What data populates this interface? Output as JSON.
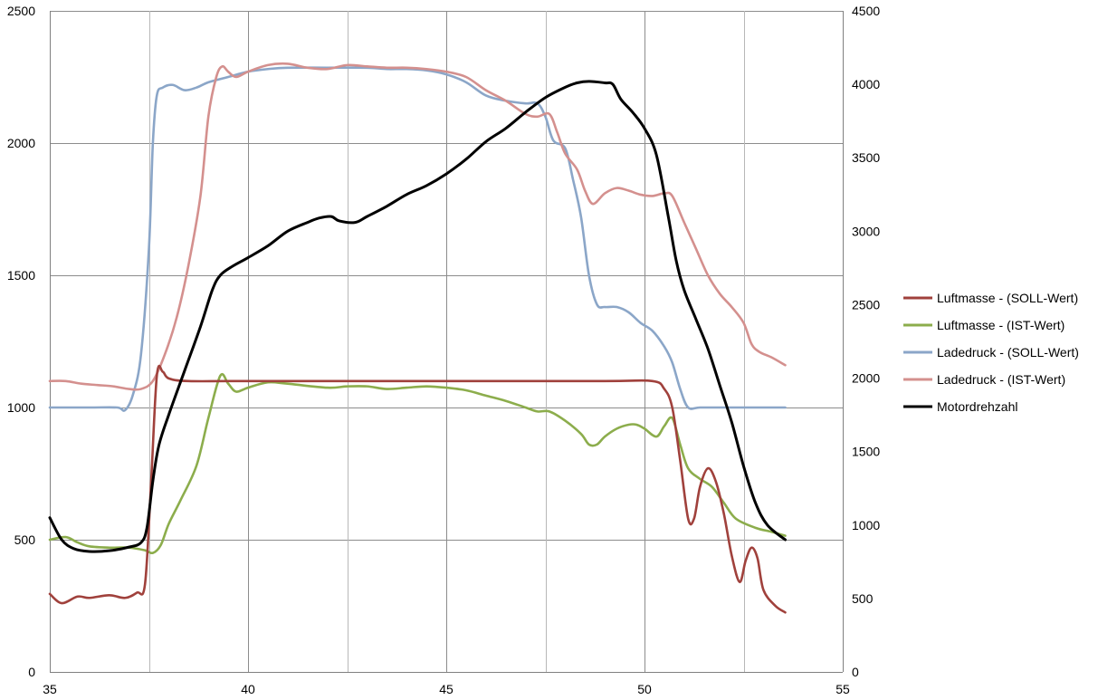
{
  "chart_data": {
    "type": "line",
    "title": "",
    "xlabel": "",
    "ylabel": "",
    "y2label": "",
    "xlim": [
      35,
      55
    ],
    "ylim": [
      0,
      2500
    ],
    "y2lim": [
      0,
      4500
    ],
    "x_ticks": [
      35,
      40,
      45,
      50,
      55
    ],
    "y_ticks": [
      0,
      500,
      1000,
      1500,
      2000,
      2500
    ],
    "y2_ticks": [
      0,
      500,
      1000,
      1500,
      2000,
      2500,
      3000,
      3500,
      4000,
      4500
    ],
    "grid": true,
    "legend_position": "right",
    "series": [
      {
        "name": "Luftmasse - (SOLL-Wert)",
        "color": "#a0413c",
        "axis": "left",
        "points": [
          [
            35.0,
            295
          ],
          [
            35.3,
            260
          ],
          [
            35.7,
            285
          ],
          [
            36.0,
            280
          ],
          [
            36.5,
            290
          ],
          [
            36.9,
            280
          ],
          [
            37.2,
            300
          ],
          [
            37.4,
            330
          ],
          [
            37.55,
            700
          ],
          [
            37.7,
            1120
          ],
          [
            37.85,
            1135
          ],
          [
            38.0,
            1110
          ],
          [
            38.5,
            1100
          ],
          [
            40.0,
            1100
          ],
          [
            45.0,
            1100
          ],
          [
            49.0,
            1100
          ],
          [
            50.2,
            1100
          ],
          [
            50.5,
            1070
          ],
          [
            50.7,
            1000
          ],
          [
            50.9,
            800
          ],
          [
            51.1,
            580
          ],
          [
            51.25,
            580
          ],
          [
            51.4,
            700
          ],
          [
            51.6,
            770
          ],
          [
            51.8,
            720
          ],
          [
            52.0,
            600
          ],
          [
            52.2,
            440
          ],
          [
            52.4,
            340
          ],
          [
            52.55,
            420
          ],
          [
            52.7,
            470
          ],
          [
            52.85,
            430
          ],
          [
            53.0,
            310
          ],
          [
            53.3,
            250
          ],
          [
            53.55,
            225
          ]
        ]
      },
      {
        "name": "Luftmasse - (IST-Wert)",
        "color": "#8cad4c",
        "axis": "left",
        "points": [
          [
            35.0,
            500
          ],
          [
            35.4,
            510
          ],
          [
            35.7,
            490
          ],
          [
            36.0,
            475
          ],
          [
            36.5,
            470
          ],
          [
            37.0,
            470
          ],
          [
            37.4,
            460
          ],
          [
            37.6,
            450
          ],
          [
            37.8,
            480
          ],
          [
            38.0,
            560
          ],
          [
            38.3,
            650
          ],
          [
            38.7,
            780
          ],
          [
            39.0,
            960
          ],
          [
            39.3,
            1120
          ],
          [
            39.5,
            1090
          ],
          [
            39.7,
            1060
          ],
          [
            40.0,
            1075
          ],
          [
            40.5,
            1095
          ],
          [
            41.0,
            1090
          ],
          [
            42.0,
            1075
          ],
          [
            42.5,
            1080
          ],
          [
            43.0,
            1080
          ],
          [
            43.5,
            1070
          ],
          [
            44.0,
            1075
          ],
          [
            44.5,
            1080
          ],
          [
            45.0,
            1075
          ],
          [
            45.5,
            1065
          ],
          [
            46.0,
            1045
          ],
          [
            46.5,
            1025
          ],
          [
            47.0,
            1000
          ],
          [
            47.3,
            985
          ],
          [
            47.6,
            985
          ],
          [
            48.0,
            950
          ],
          [
            48.4,
            900
          ],
          [
            48.6,
            860
          ],
          [
            48.8,
            860
          ],
          [
            49.0,
            890
          ],
          [
            49.3,
            920
          ],
          [
            49.6,
            935
          ],
          [
            49.8,
            935
          ],
          [
            50.0,
            920
          ],
          [
            50.3,
            890
          ],
          [
            50.5,
            930
          ],
          [
            50.7,
            960
          ],
          [
            50.9,
            860
          ],
          [
            51.1,
            770
          ],
          [
            51.4,
            730
          ],
          [
            51.7,
            700
          ],
          [
            52.0,
            640
          ],
          [
            52.3,
            580
          ],
          [
            52.8,
            545
          ],
          [
            53.2,
            530
          ],
          [
            53.55,
            515
          ]
        ]
      },
      {
        "name": "Ladedruck - (SOLL-Wert)",
        "color": "#8ba6c8",
        "axis": "left",
        "points": [
          [
            35.0,
            1000
          ],
          [
            36.0,
            1000
          ],
          [
            36.7,
            1000
          ],
          [
            36.9,
            990
          ],
          [
            37.1,
            1050
          ],
          [
            37.3,
            1200
          ],
          [
            37.5,
            1600
          ],
          [
            37.6,
            2000
          ],
          [
            37.7,
            2180
          ],
          [
            37.85,
            2210
          ],
          [
            38.1,
            2220
          ],
          [
            38.4,
            2200
          ],
          [
            38.7,
            2210
          ],
          [
            39.0,
            2230
          ],
          [
            39.5,
            2250
          ],
          [
            40.0,
            2270
          ],
          [
            40.5,
            2280
          ],
          [
            41.0,
            2285
          ],
          [
            42.0,
            2285
          ],
          [
            43.0,
            2285
          ],
          [
            43.5,
            2280
          ],
          [
            44.0,
            2280
          ],
          [
            44.5,
            2275
          ],
          [
            45.0,
            2260
          ],
          [
            45.5,
            2230
          ],
          [
            46.0,
            2180
          ],
          [
            46.5,
            2160
          ],
          [
            47.0,
            2150
          ],
          [
            47.3,
            2150
          ],
          [
            47.5,
            2100
          ],
          [
            47.7,
            2010
          ],
          [
            48.0,
            1980
          ],
          [
            48.2,
            1860
          ],
          [
            48.4,
            1720
          ],
          [
            48.6,
            1500
          ],
          [
            48.8,
            1390
          ],
          [
            49.0,
            1380
          ],
          [
            49.3,
            1380
          ],
          [
            49.6,
            1360
          ],
          [
            49.9,
            1320
          ],
          [
            50.2,
            1290
          ],
          [
            50.5,
            1230
          ],
          [
            50.7,
            1170
          ],
          [
            50.9,
            1070
          ],
          [
            51.1,
            1000
          ],
          [
            51.4,
            1000
          ],
          [
            52.0,
            1000
          ],
          [
            53.55,
            1000
          ]
        ]
      },
      {
        "name": "Ladedruck - (IST-Wert)",
        "color": "#d4908e",
        "axis": "left",
        "points": [
          [
            35.0,
            1100
          ],
          [
            35.4,
            1100
          ],
          [
            35.8,
            1090
          ],
          [
            36.2,
            1085
          ],
          [
            36.6,
            1080
          ],
          [
            37.0,
            1070
          ],
          [
            37.3,
            1070
          ],
          [
            37.6,
            1100
          ],
          [
            37.9,
            1200
          ],
          [
            38.2,
            1340
          ],
          [
            38.5,
            1540
          ],
          [
            38.8,
            1800
          ],
          [
            39.0,
            2100
          ],
          [
            39.2,
            2250
          ],
          [
            39.35,
            2290
          ],
          [
            39.5,
            2270
          ],
          [
            39.7,
            2250
          ],
          [
            40.0,
            2270
          ],
          [
            40.5,
            2295
          ],
          [
            41.0,
            2300
          ],
          [
            41.5,
            2285
          ],
          [
            42.0,
            2280
          ],
          [
            42.5,
            2295
          ],
          [
            43.0,
            2290
          ],
          [
            43.5,
            2285
          ],
          [
            44.0,
            2285
          ],
          [
            44.5,
            2280
          ],
          [
            45.0,
            2270
          ],
          [
            45.5,
            2250
          ],
          [
            46.0,
            2200
          ],
          [
            46.5,
            2160
          ],
          [
            47.0,
            2110
          ],
          [
            47.3,
            2100
          ],
          [
            47.6,
            2110
          ],
          [
            47.8,
            2040
          ],
          [
            48.0,
            1960
          ],
          [
            48.3,
            1900
          ],
          [
            48.5,
            1820
          ],
          [
            48.7,
            1770
          ],
          [
            49.0,
            1810
          ],
          [
            49.3,
            1830
          ],
          [
            49.6,
            1820
          ],
          [
            49.9,
            1805
          ],
          [
            50.2,
            1800
          ],
          [
            50.5,
            1810
          ],
          [
            50.7,
            1800
          ],
          [
            51.0,
            1700
          ],
          [
            51.3,
            1600
          ],
          [
            51.6,
            1500
          ],
          [
            51.9,
            1430
          ],
          [
            52.2,
            1380
          ],
          [
            52.5,
            1320
          ],
          [
            52.7,
            1240
          ],
          [
            52.9,
            1210
          ],
          [
            53.2,
            1190
          ],
          [
            53.55,
            1160
          ]
        ]
      },
      {
        "name": "Motordrehzahl",
        "color": "#000000",
        "axis": "right",
        "points": [
          [
            35.0,
            1050
          ],
          [
            35.3,
            900
          ],
          [
            35.6,
            840
          ],
          [
            36.0,
            820
          ],
          [
            36.5,
            825
          ],
          [
            37.0,
            850
          ],
          [
            37.3,
            880
          ],
          [
            37.45,
            980
          ],
          [
            37.6,
            1300
          ],
          [
            37.75,
            1540
          ],
          [
            38.0,
            1750
          ],
          [
            38.4,
            2050
          ],
          [
            38.8,
            2350
          ],
          [
            39.1,
            2600
          ],
          [
            39.3,
            2700
          ],
          [
            39.6,
            2760
          ],
          [
            40.0,
            2820
          ],
          [
            40.5,
            2900
          ],
          [
            41.0,
            3000
          ],
          [
            41.5,
            3060
          ],
          [
            41.8,
            3090
          ],
          [
            42.1,
            3100
          ],
          [
            42.3,
            3070
          ],
          [
            42.7,
            3060
          ],
          [
            43.0,
            3100
          ],
          [
            43.5,
            3170
          ],
          [
            44.0,
            3250
          ],
          [
            44.5,
            3310
          ],
          [
            45.0,
            3390
          ],
          [
            45.5,
            3490
          ],
          [
            46.0,
            3610
          ],
          [
            46.5,
            3700
          ],
          [
            47.0,
            3810
          ],
          [
            47.5,
            3910
          ],
          [
            48.0,
            3980
          ],
          [
            48.3,
            4010
          ],
          [
            48.6,
            4020
          ],
          [
            49.0,
            4010
          ],
          [
            49.2,
            4000
          ],
          [
            49.4,
            3900
          ],
          [
            49.7,
            3810
          ],
          [
            50.0,
            3700
          ],
          [
            50.3,
            3520
          ],
          [
            50.6,
            3100
          ],
          [
            50.8,
            2800
          ],
          [
            51.0,
            2600
          ],
          [
            51.3,
            2400
          ],
          [
            51.6,
            2200
          ],
          [
            51.9,
            1950
          ],
          [
            52.2,
            1700
          ],
          [
            52.5,
            1400
          ],
          [
            52.8,
            1150
          ],
          [
            53.1,
            1000
          ],
          [
            53.55,
            900
          ]
        ]
      }
    ]
  }
}
